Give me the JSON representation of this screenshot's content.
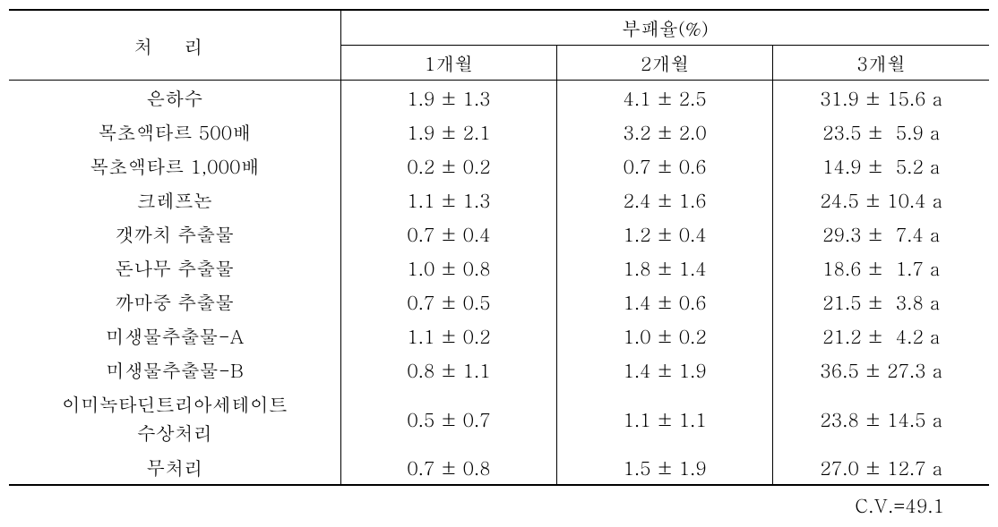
{
  "headers": {
    "treatment": "처 리",
    "decay_group": "부패율(%)",
    "month1": "1개월",
    "month2": "2개월",
    "month3": "3개월"
  },
  "rows": [
    {
      "label": "은하수",
      "m1_val": "1.9",
      "m1_err": "1.3",
      "m2_val": "4.1",
      "m2_err": "2.5",
      "m3_val": "31.9",
      "m3_err": "15.6",
      "m3_letter": "a"
    },
    {
      "label": "목초액타르 500배",
      "m1_val": "1.9",
      "m1_err": "2.1",
      "m2_val": "3.2",
      "m2_err": "2.0",
      "m3_val": "23.5",
      "m3_err": "5.9",
      "m3_letter": "a"
    },
    {
      "label": "목초액타르 1,000배",
      "m1_val": "0.2",
      "m1_err": "0.2",
      "m2_val": "0.7",
      "m2_err": "0.6",
      "m3_val": "14.9",
      "m3_err": "5.2",
      "m3_letter": "a"
    },
    {
      "label": "크레프논",
      "m1_val": "1.1",
      "m1_err": "1.3",
      "m2_val": "2.4",
      "m2_err": "1.6",
      "m3_val": "24.5",
      "m3_err": "10.4",
      "m3_letter": "a"
    },
    {
      "label": "갯까치 추출물",
      "m1_val": "0.7",
      "m1_err": "0.4",
      "m2_val": "1.2",
      "m2_err": "0.4",
      "m3_val": "29.3",
      "m3_err": "7.4",
      "m3_letter": "a"
    },
    {
      "label": "돈나무 추출물",
      "m1_val": "1.0",
      "m1_err": "0.8",
      "m2_val": "1.8",
      "m2_err": "1.4",
      "m3_val": "18.6",
      "m3_err": "1.7",
      "m3_letter": "a"
    },
    {
      "label": "까마중 추출물",
      "m1_val": "0.7",
      "m1_err": "0.5",
      "m2_val": "1.4",
      "m2_err": "0.6",
      "m3_val": "21.5",
      "m3_err": "3.8",
      "m3_letter": "a"
    },
    {
      "label": "미생물추출물-A",
      "m1_val": "1.1",
      "m1_err": "0.2",
      "m2_val": "1.0",
      "m2_err": "0.2",
      "m3_val": "21.2",
      "m3_err": "4.2",
      "m3_letter": "a"
    },
    {
      "label": "미생물추출물-B",
      "m1_val": "0.8",
      "m1_err": "1.1",
      "m2_val": "1.4",
      "m2_err": "1.9",
      "m3_val": "36.5",
      "m3_err": "27.3",
      "m3_letter": "a"
    },
    {
      "label": "이미녹타딘트리아세테이트\n수상처리",
      "m1_val": "0.5",
      "m1_err": "0.7",
      "m2_val": "1.1",
      "m2_err": "1.1",
      "m3_val": "23.8",
      "m3_err": "14.5",
      "m3_letter": "a",
      "multiline": true
    },
    {
      "label": "무처리",
      "m1_val": "0.7",
      "m1_err": "0.8",
      "m2_val": "1.5",
      "m2_err": "1.9",
      "m3_val": "27.0",
      "m3_err": "12.7",
      "m3_letter": "a"
    }
  ],
  "footer": {
    "cv": "C.V.=49.1"
  },
  "style": {
    "font_size_pt": 16,
    "colors": {
      "text": "#000000",
      "border": "#000000",
      "background": "#ffffff"
    }
  }
}
